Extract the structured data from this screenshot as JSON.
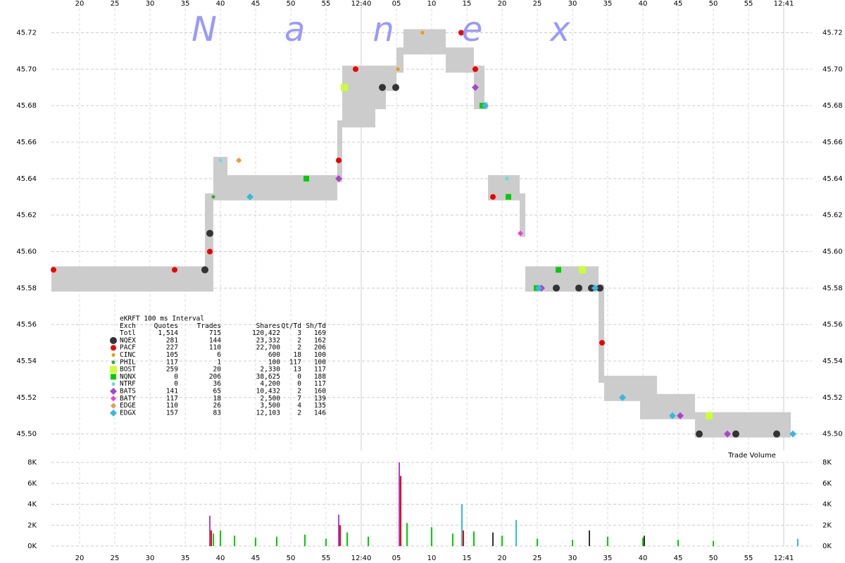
{
  "chart_data": [
    {
      "type": "scatter",
      "watermark": "Nanex",
      "xlim": [
        16,
        124
      ],
      "xticks": [
        20,
        25,
        30,
        35,
        40,
        45,
        50,
        55,
        {
          "value": 60,
          "label": "12:40"
        },
        {
          "value": 65,
          "label": "05"
        },
        {
          "value": 70,
          "label": "10"
        },
        {
          "value": 75,
          "label": "15"
        },
        {
          "value": 80,
          "label": "20"
        },
        {
          "value": 85,
          "label": "25"
        },
        {
          "value": 90,
          "label": "30"
        },
        {
          "value": 95,
          "label": "35"
        },
        {
          "value": 100,
          "label": "40"
        },
        {
          "value": 105,
          "label": "45"
        },
        {
          "value": 110,
          "label": "50"
        },
        {
          "value": 115,
          "label": "55"
        },
        {
          "value": 120,
          "label": "12:41"
        }
      ],
      "minute_ticks": [
        60,
        120
      ],
      "ylim": [
        45.491,
        45.736
      ],
      "yticks": [
        {
          "value": 45.5,
          "label": "45.50"
        },
        45.52,
        45.54,
        45.56,
        45.58,
        {
          "value": 45.6,
          "label": "45.60"
        },
        45.62,
        45.64,
        45.66,
        45.68,
        {
          "value": 45.7,
          "label": "45.70"
        },
        45.72
      ],
      "grid": true,
      "band": {
        "color": "#cccccc",
        "edges": [
          16,
          37.8,
          39,
          41,
          56.6,
          57.3,
          62,
          63.5,
          65,
          66,
          72,
          74,
          76,
          77.5,
          78,
          82.5,
          83.3,
          93.7,
          94.5,
          99.6,
          102,
          107.4,
          121
        ],
        "low": [
          45.58,
          45.58,
          45.63,
          45.63,
          45.64,
          45.67,
          45.68,
          45.69,
          45.7,
          45.71,
          45.7,
          45.7,
          45.68,
          45.68,
          45.63,
          45.61,
          45.58,
          45.53,
          45.52,
          45.51,
          45.51,
          45.5
        ],
        "high": [
          45.59,
          45.63,
          45.65,
          45.64,
          45.67,
          45.7,
          45.7,
          45.7,
          45.71,
          45.72,
          45.71,
          45.71,
          45.7,
          45.68,
          45.64,
          45.63,
          45.59,
          45.58,
          45.53,
          45.53,
          45.52,
          45.51
        ]
      },
      "series": [
        {
          "name": "NQEX",
          "color": "#333333",
          "marker": "circle",
          "size": 5,
          "x": [
            37.8,
            38.5,
            63,
            64.9,
            87.7,
            90.9,
            92.7,
            93.9,
            108,
            113.2,
            119
          ],
          "values": [
            45.59,
            45.61,
            45.69,
            45.69,
            45.58,
            45.58,
            45.58,
            45.58,
            45.5,
            45.5,
            45.5
          ]
        },
        {
          "name": "PACF",
          "color": "#ee0000",
          "marker": "circle",
          "size": 4,
          "x": [
            16.3,
            33.5,
            38.5,
            56.8,
            59.2,
            74.2,
            76.2,
            78.7,
            88,
            94.2
          ],
          "values": [
            45.59,
            45.59,
            45.6,
            45.65,
            45.7,
            45.72,
            45.7,
            45.63,
            45.59,
            45.55
          ]
        },
        {
          "name": "CINC",
          "color": "#ee9900",
          "marker": "circle",
          "size": 2.5,
          "x": [
            42.7,
            65.2,
            68.7
          ],
          "values": [
            45.65,
            45.7,
            45.72
          ]
        },
        {
          "name": "PHIL",
          "color": "#33aa33",
          "marker": "circle",
          "size": 2.5,
          "x": [
            39
          ],
          "values": [
            45.63
          ]
        },
        {
          "name": "BOST",
          "color": "#ccff33",
          "marker": "square",
          "size": 5,
          "x": [
            57.6,
            91.4,
            109.4
          ],
          "values": [
            45.69,
            45.59,
            45.51
          ]
        },
        {
          "name": "NQNX",
          "color": "#00cc00",
          "marker": "square",
          "size": 4,
          "x": [
            52.2,
            77.2,
            80.9,
            84.9,
            88
          ],
          "values": [
            45.64,
            45.68,
            45.63,
            45.58,
            45.59
          ]
        },
        {
          "name": "NTRF",
          "color": "#66dddd",
          "marker": "circle",
          "size": 2.5,
          "x": [
            40,
            80.7
          ],
          "values": [
            45.65,
            45.64
          ]
        },
        {
          "name": "BATS",
          "color": "#aa44cc",
          "marker": "diamond",
          "size": 5,
          "x": [
            56.8,
            76.2,
            85.6,
            105.3,
            112
          ],
          "values": [
            45.64,
            45.69,
            45.58,
            45.51,
            45.5
          ]
        },
        {
          "name": "BATY",
          "color": "#ee44cc",
          "marker": "diamond",
          "size": 4,
          "x": [
            82.6
          ],
          "values": [
            45.61
          ]
        },
        {
          "name": "EDGE",
          "color": "#ee9944",
          "marker": "diamond",
          "size": 4,
          "x": [
            42.6
          ],
          "values": [
            45.65
          ]
        },
        {
          "name": "EDGX",
          "color": "#33bbdd",
          "marker": "diamond",
          "size": 5,
          "x": [
            44.2,
            77.6,
            85.2,
            93.2,
            97.1,
            104.2,
            121.3
          ],
          "values": [
            45.63,
            45.68,
            45.58,
            45.58,
            45.52,
            45.51,
            45.5
          ]
        }
      ]
    },
    {
      "type": "bar",
      "annotation": "Trade Volume",
      "xlim": [
        16,
        124
      ],
      "ylim": [
        0,
        8000
      ],
      "yticks": [
        {
          "value": 0,
          "label": "0K"
        },
        {
          "value": 2000,
          "label": "2K"
        },
        {
          "value": 4000,
          "label": "4K"
        },
        {
          "value": 6000,
          "label": "6K"
        },
        {
          "value": 8000,
          "label": "8K"
        }
      ],
      "grid": true,
      "series": [
        {
          "color": "#00cc00",
          "x": [
            39,
            40,
            42,
            45,
            48,
            52,
            55,
            58,
            61,
            66.5,
            70,
            73,
            76,
            80,
            85,
            90,
            95,
            100,
            105,
            110
          ],
          "values": [
            1200,
            1500,
            1000,
            800,
            900,
            1100,
            700,
            1300,
            900,
            2200,
            1800,
            1200,
            1400,
            1000,
            700,
            600,
            900,
            800,
            600,
            500
          ]
        },
        {
          "color": "#aa44cc",
          "x": [
            38.5,
            56.8,
            65.4
          ],
          "values": [
            2900,
            3000,
            8000
          ]
        },
        {
          "color": "#ee0000",
          "x": [
            38.7,
            57,
            65.6,
            74.5
          ],
          "values": [
            1500,
            2000,
            6700,
            1500
          ]
        },
        {
          "color": "#33bbdd",
          "x": [
            74.3,
            82,
            122
          ],
          "values": [
            4000,
            2500,
            700
          ]
        },
        {
          "color": "#333333",
          "x": [
            78.7,
            92.4,
            100.2
          ],
          "values": [
            1300,
            1500,
            1000
          ]
        }
      ]
    }
  ],
  "legend_table": {
    "title": "eKRFT 100 ms Interval",
    "columns": [
      "Exch",
      "Quotes",
      "Trades",
      "Shares",
      "Qt/Td",
      "Sh/Td"
    ],
    "total": [
      "Totl",
      "1,514",
      "715",
      "120,422",
      "3",
      "169"
    ],
    "rows": [
      [
        "281",
        "144",
        "23,332",
        "2",
        "162"
      ],
      [
        "227",
        "110",
        "22,700",
        "2",
        "206"
      ],
      [
        "105",
        "6",
        "600",
        "18",
        "100"
      ],
      [
        "117",
        "1",
        "100",
        "117",
        "100"
      ],
      [
        "259",
        "20",
        "2,330",
        "13",
        "117"
      ],
      [
        "0",
        "206",
        "38,625",
        "0",
        "188"
      ],
      [
        "0",
        "36",
        "4,200",
        "0",
        "117"
      ],
      [
        "141",
        "65",
        "10,432",
        "2",
        "160"
      ],
      [
        "117",
        "18",
        "2,500",
        "7",
        "139"
      ],
      [
        "110",
        "26",
        "3,500",
        "4",
        "135"
      ],
      [
        "157",
        "83",
        "12,103",
        "2",
        "146"
      ]
    ]
  }
}
